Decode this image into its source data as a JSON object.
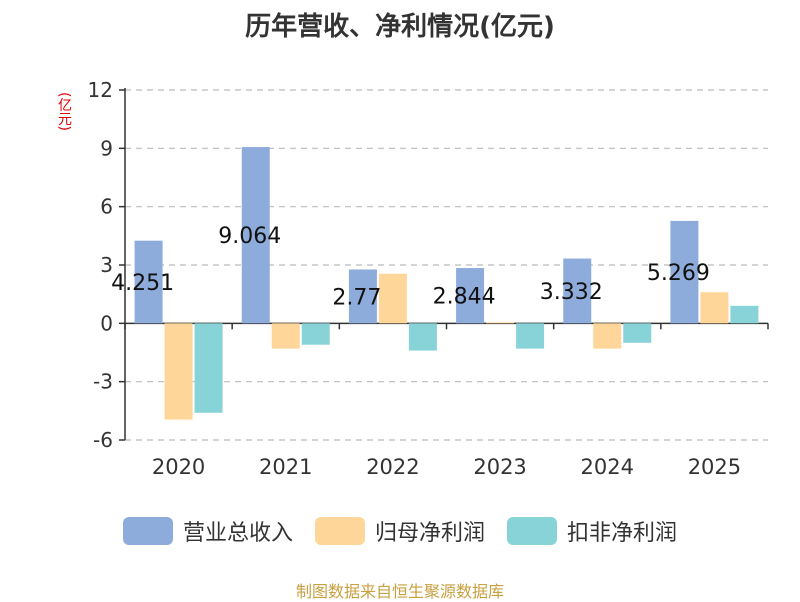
{
  "chart_data": {
    "type": "bar",
    "title": "历年营收、净利情况(亿元)",
    "ylabel": "(亿元)",
    "categories": [
      "2020",
      "2021",
      "2022",
      "2023",
      "2024",
      "2025"
    ],
    "ylim": [
      -6,
      12
    ],
    "yticks": [
      12,
      9,
      6,
      3,
      0,
      -3,
      -6
    ],
    "grid": true,
    "legend_position": "bottom",
    "series": [
      {
        "name": "营业总收入",
        "color": "#8EACDB",
        "values": [
          4.251,
          9.064,
          2.77,
          2.844,
          3.332,
          5.269
        ],
        "labels": [
          "4.251",
          "9.064",
          "2.77",
          "2.844",
          "3.332",
          "5.269"
        ]
      },
      {
        "name": "归母净利润",
        "color": "#FFD699",
        "values": [
          -4.95,
          -1.3,
          2.55,
          0.05,
          -1.3,
          1.6
        ]
      },
      {
        "name": "扣非净利润",
        "color": "#88D3D8",
        "values": [
          -4.6,
          -1.1,
          -1.4,
          -1.3,
          -1.0,
          0.9
        ]
      }
    ]
  },
  "source_text": "制图数据来自恒生聚源数据库"
}
